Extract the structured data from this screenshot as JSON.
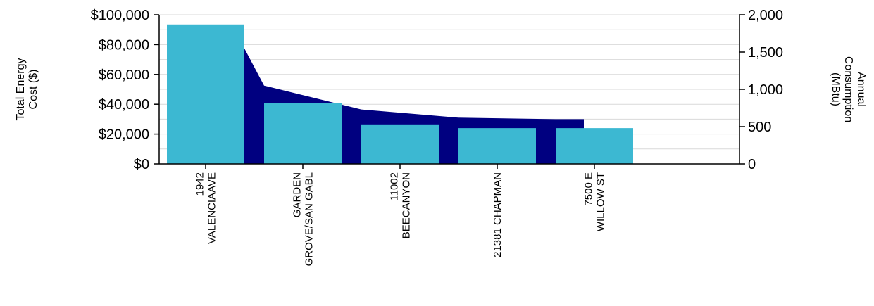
{
  "chart_data": {
    "type": "bar",
    "title": "",
    "categories": [
      [
        "1942",
        "VALENCIAAVE"
      ],
      [
        "GARDEN",
        "GROVE/SAN GABL"
      ],
      [
        "11002",
        "BEECANYON"
      ],
      [
        "21381 CHAPMAN"
      ],
      [
        "7500 E",
        "WILLOW ST"
      ]
    ],
    "series": [
      {
        "name": "Total Energy Cost ($)",
        "kind": "bar",
        "axis": "left",
        "color": "#3CB8D2",
        "values": [
          93500,
          41000,
          26500,
          24000,
          24000
        ]
      },
      {
        "name": "Annual Consumption (MBtu)",
        "kind": "area",
        "axis": "right",
        "color": "#000080",
        "values": [
          1550,
          1050,
          730,
          620,
          600
        ]
      }
    ],
    "y_left": {
      "label_lines": [
        "Total Energy",
        "Cost ($)"
      ],
      "range": [
        0,
        100000
      ],
      "ticks": [
        0,
        20000,
        40000,
        60000,
        80000,
        100000
      ],
      "tick_labels": [
        "$0",
        "$20,000",
        "$40,000",
        "$60,000",
        "$80,000",
        "$100,000"
      ]
    },
    "y_right": {
      "label_lines": [
        "Annual",
        "Consumption",
        "(MBtu)"
      ],
      "range": [
        0,
        2000
      ],
      "ticks": [
        0,
        500,
        1000,
        1500,
        2000
      ],
      "tick_labels": [
        "0",
        "500",
        "1,000",
        "1,500",
        "2,000"
      ]
    },
    "grid": true,
    "legend": "none"
  }
}
